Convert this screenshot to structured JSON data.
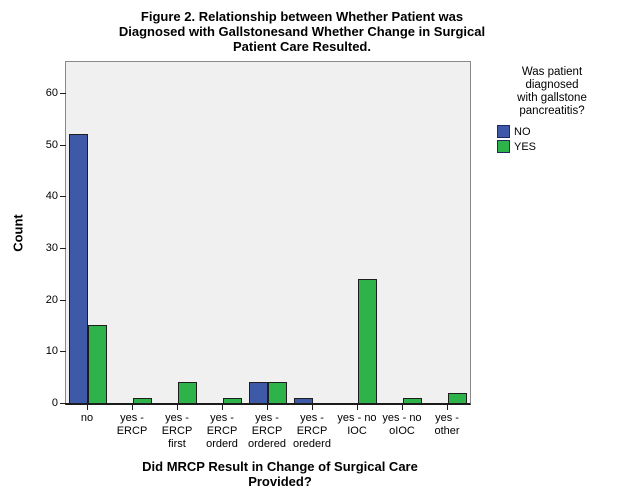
{
  "figure": {
    "title_lines": [
      "Figure 2. Relationship between Whether Patient was",
      "Diagnosed with Gallstonesand Whether Change in Surgical",
      "Patient Care Resulted."
    ],
    "x_axis_title_lines": [
      "Did MRCP Result in Change of Surgical Care",
      "Provided?"
    ]
  },
  "legend": {
    "title_lines": [
      "Was patient",
      "diagnosed",
      "with gallstone",
      "pancreatitis?"
    ],
    "items": [
      {
        "label": "NO",
        "color": "#3D59A8"
      },
      {
        "label": "YES",
        "color": "#2DB34A"
      }
    ]
  },
  "chart_data": {
    "type": "bar",
    "title": "Figure 2. Relationship between Whether Patient was Diagnosed with Gallstonesand Whether Change in Surgical Patient Care Resulted.",
    "xlabel": "Did MRCP Result in Change of Surgical Care Provided?",
    "ylabel": "Count",
    "categories": [
      "no",
      "yes - ERCP",
      "yes - ERCP first",
      "yes - ERCP orderd",
      "yes - ERCP ordered",
      "yes - ERCP orederd",
      "yes - no IOC",
      "yes - no oIOC",
      "yes - other"
    ],
    "category_tick_lines": [
      [
        "no"
      ],
      [
        "yes -",
        "ERCP"
      ],
      [
        "yes -",
        "ERCP",
        "first"
      ],
      [
        "yes -",
        "ERCP",
        "orderd"
      ],
      [
        "yes -",
        "ERCP",
        "ordered"
      ],
      [
        "yes -",
        "ERCP",
        "orederd"
      ],
      [
        "yes - no",
        "IOC"
      ],
      [
        "yes - no",
        "oIOC"
      ],
      [
        "yes -",
        "other"
      ]
    ],
    "series": [
      {
        "name": "NO",
        "color": "#3D59A8",
        "values": [
          52,
          0,
          0,
          0,
          4,
          1,
          0,
          0,
          0
        ]
      },
      {
        "name": "YES",
        "color": "#2DB34A",
        "values": [
          15,
          1,
          4,
          1,
          4,
          0,
          24,
          1,
          2
        ]
      }
    ],
    "y_ticks": [
      0,
      10,
      20,
      30,
      40,
      50,
      60
    ],
    "ylim": [
      0,
      66
    ],
    "grid": false,
    "legend_title": "Was patient diagnosed with gallstone pancreatitis?",
    "legend_position": "right",
    "plot_background": "#F0F0F0"
  }
}
